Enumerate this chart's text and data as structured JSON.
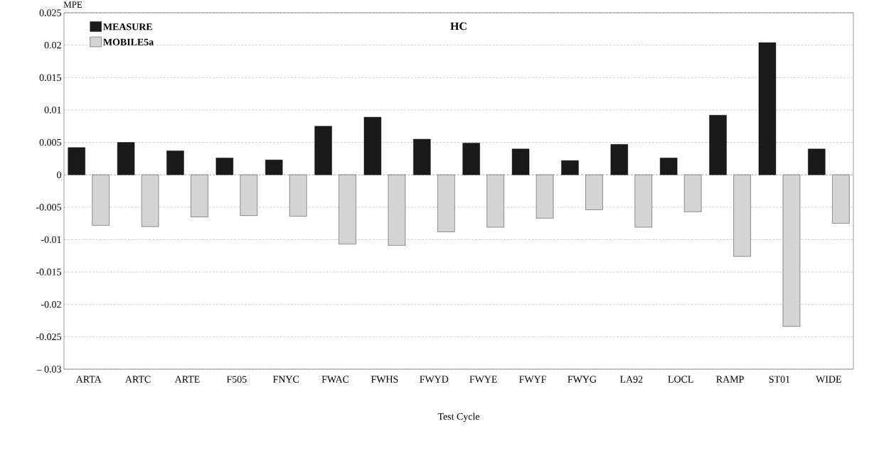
{
  "chart_data": {
    "type": "bar",
    "title": "HC",
    "xlabel": "Test Cycle",
    "ylabel": "MPE",
    "categories": [
      "ARTA",
      "ARTC",
      "ARTE",
      "F505",
      "FNYC",
      "FWAC",
      "FWHS",
      "FWYD",
      "FWYE",
      "FWYF",
      "FWYG",
      "LA92",
      "LOCL",
      "RAMP",
      "ST01",
      "WIDE"
    ],
    "series": [
      {
        "name": "MEASURE",
        "color": "#1a1a1a",
        "values": [
          0.0042,
          0.005,
          0.0037,
          0.0026,
          0.0023,
          0.0075,
          0.0089,
          0.0055,
          0.0049,
          0.004,
          0.0022,
          0.0047,
          0.0026,
          0.0092,
          0.0204,
          0.004
        ]
      },
      {
        "name": "MOBILE5a",
        "color": "#d4d4d4",
        "values": [
          -0.0078,
          -0.008,
          -0.0065,
          -0.0063,
          -0.0064,
          -0.0107,
          -0.0109,
          -0.0088,
          -0.0081,
          -0.0067,
          -0.0054,
          -0.0081,
          -0.0057,
          -0.0126,
          -0.0234,
          -0.0075
        ]
      }
    ],
    "ylim": [
      -0.03,
      0.025
    ],
    "yticks": [
      {
        "value": -0.03,
        "label": "– 0.03"
      },
      {
        "value": -0.025,
        "label": "-0.025"
      },
      {
        "value": -0.02,
        "label": "-0.02"
      },
      {
        "value": -0.015,
        "label": "-0.015"
      },
      {
        "value": -0.01,
        "label": "-0.01"
      },
      {
        "value": -0.005,
        "label": "-0.005"
      },
      0,
      0.005,
      0.01,
      0.015,
      0.02,
      0.025
    ],
    "grid": "y",
    "legend": "top left"
  }
}
